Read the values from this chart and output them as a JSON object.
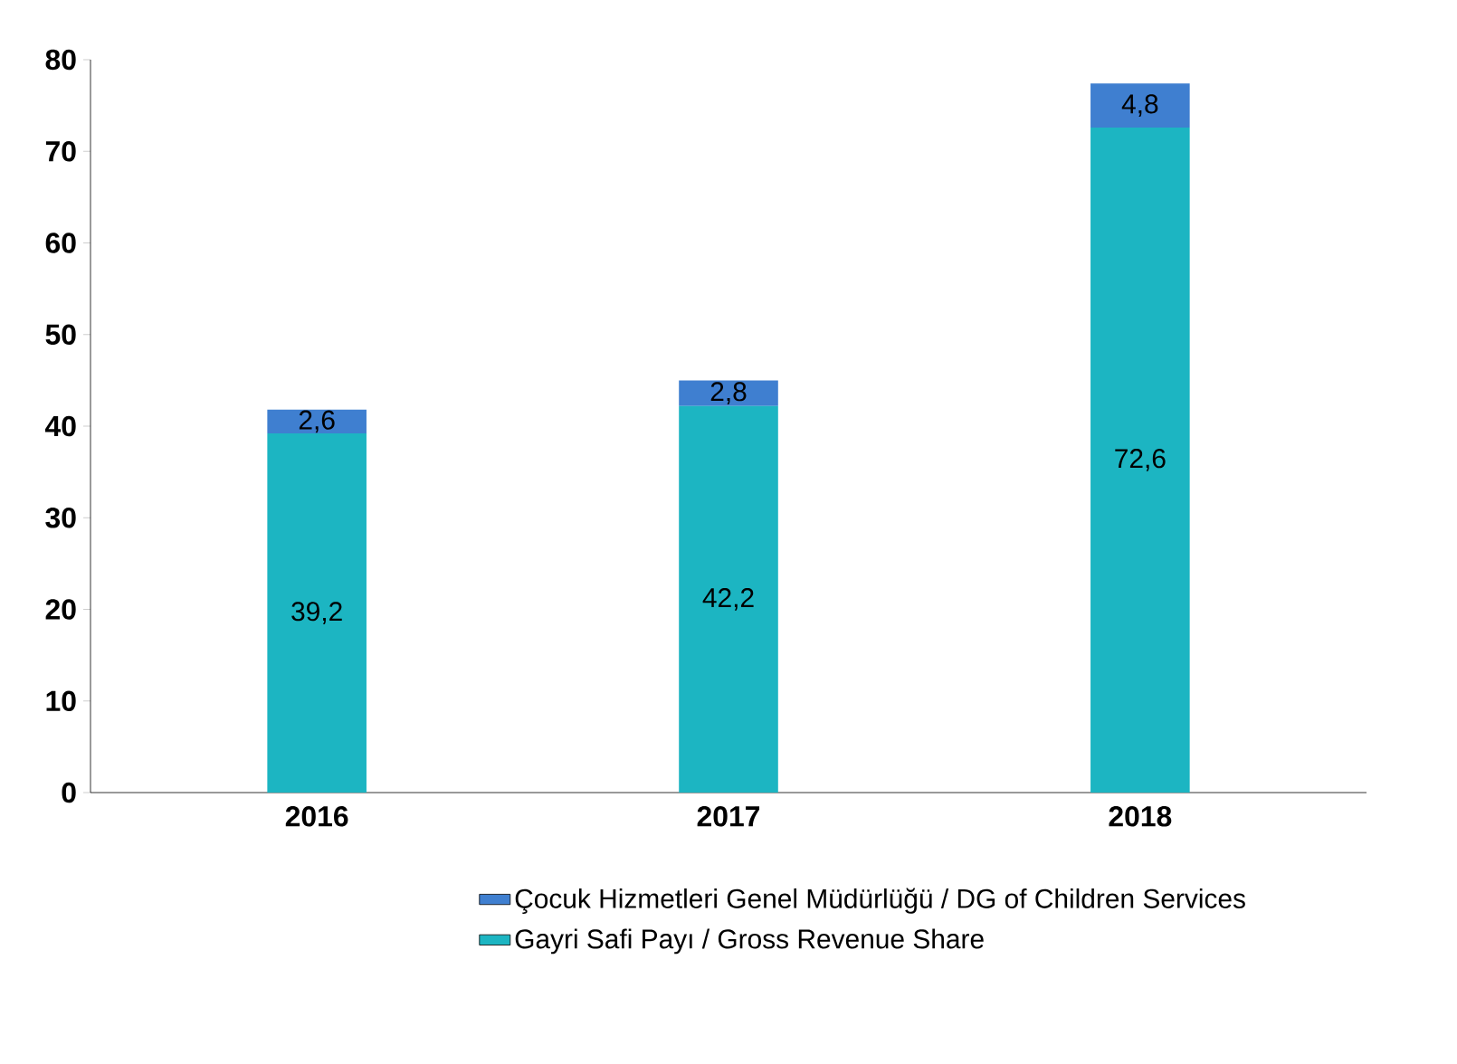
{
  "chart_data": {
    "type": "bar",
    "stacked": true,
    "categories": [
      "2016",
      "2017",
      "2018"
    ],
    "series": [
      {
        "name": "Gayri Safi Payı / Gross Revenue Share",
        "color": "#1cb5c2",
        "values": [
          39.2,
          42.2,
          72.6
        ],
        "value_labels": [
          "39,2",
          "42,2",
          "72,6"
        ]
      },
      {
        "name": "Çocuk Hizmetleri Genel Müdürlüğü / DG of Children Services",
        "color": "#3f7fd0",
        "values": [
          2.6,
          2.8,
          4.8
        ],
        "value_labels": [
          "2,6",
          "2,8",
          "4,8"
        ]
      }
    ],
    "ylim": [
      0,
      80
    ],
    "yticks": [
      0,
      10,
      20,
      30,
      40,
      50,
      60,
      70,
      80
    ],
    "grid": false,
    "legend": "bottom"
  }
}
